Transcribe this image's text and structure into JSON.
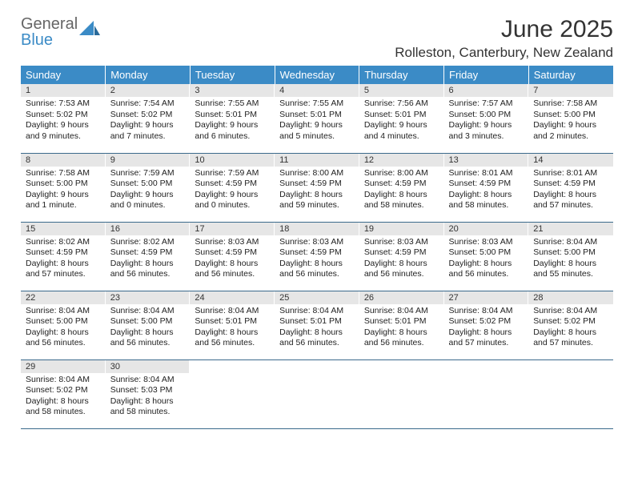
{
  "logo": {
    "word1": "General",
    "word2": "Blue"
  },
  "title": "June 2025",
  "location": "Rolleston, Canterbury, New Zealand",
  "colors": {
    "header_bg": "#3b8bc6",
    "header_fg": "#ffffff",
    "daynum_bg": "#e6e6e6",
    "row_border": "#3b6a8c",
    "text": "#222222",
    "logo_gray": "#666666",
    "logo_blue": "#3b8bc6"
  },
  "weekdays": [
    "Sunday",
    "Monday",
    "Tuesday",
    "Wednesday",
    "Thursday",
    "Friday",
    "Saturday"
  ],
  "weeks": [
    [
      {
        "n": "1",
        "sr": "Sunrise: 7:53 AM",
        "ss": "Sunset: 5:02 PM",
        "d1": "Daylight: 9 hours",
        "d2": "and 9 minutes."
      },
      {
        "n": "2",
        "sr": "Sunrise: 7:54 AM",
        "ss": "Sunset: 5:02 PM",
        "d1": "Daylight: 9 hours",
        "d2": "and 7 minutes."
      },
      {
        "n": "3",
        "sr": "Sunrise: 7:55 AM",
        "ss": "Sunset: 5:01 PM",
        "d1": "Daylight: 9 hours",
        "d2": "and 6 minutes."
      },
      {
        "n": "4",
        "sr": "Sunrise: 7:55 AM",
        "ss": "Sunset: 5:01 PM",
        "d1": "Daylight: 9 hours",
        "d2": "and 5 minutes."
      },
      {
        "n": "5",
        "sr": "Sunrise: 7:56 AM",
        "ss": "Sunset: 5:01 PM",
        "d1": "Daylight: 9 hours",
        "d2": "and 4 minutes."
      },
      {
        "n": "6",
        "sr": "Sunrise: 7:57 AM",
        "ss": "Sunset: 5:00 PM",
        "d1": "Daylight: 9 hours",
        "d2": "and 3 minutes."
      },
      {
        "n": "7",
        "sr": "Sunrise: 7:58 AM",
        "ss": "Sunset: 5:00 PM",
        "d1": "Daylight: 9 hours",
        "d2": "and 2 minutes."
      }
    ],
    [
      {
        "n": "8",
        "sr": "Sunrise: 7:58 AM",
        "ss": "Sunset: 5:00 PM",
        "d1": "Daylight: 9 hours",
        "d2": "and 1 minute."
      },
      {
        "n": "9",
        "sr": "Sunrise: 7:59 AM",
        "ss": "Sunset: 5:00 PM",
        "d1": "Daylight: 9 hours",
        "d2": "and 0 minutes."
      },
      {
        "n": "10",
        "sr": "Sunrise: 7:59 AM",
        "ss": "Sunset: 4:59 PM",
        "d1": "Daylight: 9 hours",
        "d2": "and 0 minutes."
      },
      {
        "n": "11",
        "sr": "Sunrise: 8:00 AM",
        "ss": "Sunset: 4:59 PM",
        "d1": "Daylight: 8 hours",
        "d2": "and 59 minutes."
      },
      {
        "n": "12",
        "sr": "Sunrise: 8:00 AM",
        "ss": "Sunset: 4:59 PM",
        "d1": "Daylight: 8 hours",
        "d2": "and 58 minutes."
      },
      {
        "n": "13",
        "sr": "Sunrise: 8:01 AM",
        "ss": "Sunset: 4:59 PM",
        "d1": "Daylight: 8 hours",
        "d2": "and 58 minutes."
      },
      {
        "n": "14",
        "sr": "Sunrise: 8:01 AM",
        "ss": "Sunset: 4:59 PM",
        "d1": "Daylight: 8 hours",
        "d2": "and 57 minutes."
      }
    ],
    [
      {
        "n": "15",
        "sr": "Sunrise: 8:02 AM",
        "ss": "Sunset: 4:59 PM",
        "d1": "Daylight: 8 hours",
        "d2": "and 57 minutes."
      },
      {
        "n": "16",
        "sr": "Sunrise: 8:02 AM",
        "ss": "Sunset: 4:59 PM",
        "d1": "Daylight: 8 hours",
        "d2": "and 56 minutes."
      },
      {
        "n": "17",
        "sr": "Sunrise: 8:03 AM",
        "ss": "Sunset: 4:59 PM",
        "d1": "Daylight: 8 hours",
        "d2": "and 56 minutes."
      },
      {
        "n": "18",
        "sr": "Sunrise: 8:03 AM",
        "ss": "Sunset: 4:59 PM",
        "d1": "Daylight: 8 hours",
        "d2": "and 56 minutes."
      },
      {
        "n": "19",
        "sr": "Sunrise: 8:03 AM",
        "ss": "Sunset: 4:59 PM",
        "d1": "Daylight: 8 hours",
        "d2": "and 56 minutes."
      },
      {
        "n": "20",
        "sr": "Sunrise: 8:03 AM",
        "ss": "Sunset: 5:00 PM",
        "d1": "Daylight: 8 hours",
        "d2": "and 56 minutes."
      },
      {
        "n": "21",
        "sr": "Sunrise: 8:04 AM",
        "ss": "Sunset: 5:00 PM",
        "d1": "Daylight: 8 hours",
        "d2": "and 55 minutes."
      }
    ],
    [
      {
        "n": "22",
        "sr": "Sunrise: 8:04 AM",
        "ss": "Sunset: 5:00 PM",
        "d1": "Daylight: 8 hours",
        "d2": "and 56 minutes."
      },
      {
        "n": "23",
        "sr": "Sunrise: 8:04 AM",
        "ss": "Sunset: 5:00 PM",
        "d1": "Daylight: 8 hours",
        "d2": "and 56 minutes."
      },
      {
        "n": "24",
        "sr": "Sunrise: 8:04 AM",
        "ss": "Sunset: 5:01 PM",
        "d1": "Daylight: 8 hours",
        "d2": "and 56 minutes."
      },
      {
        "n": "25",
        "sr": "Sunrise: 8:04 AM",
        "ss": "Sunset: 5:01 PM",
        "d1": "Daylight: 8 hours",
        "d2": "and 56 minutes."
      },
      {
        "n": "26",
        "sr": "Sunrise: 8:04 AM",
        "ss": "Sunset: 5:01 PM",
        "d1": "Daylight: 8 hours",
        "d2": "and 56 minutes."
      },
      {
        "n": "27",
        "sr": "Sunrise: 8:04 AM",
        "ss": "Sunset: 5:02 PM",
        "d1": "Daylight: 8 hours",
        "d2": "and 57 minutes."
      },
      {
        "n": "28",
        "sr": "Sunrise: 8:04 AM",
        "ss": "Sunset: 5:02 PM",
        "d1": "Daylight: 8 hours",
        "d2": "and 57 minutes."
      }
    ],
    [
      {
        "n": "29",
        "sr": "Sunrise: 8:04 AM",
        "ss": "Sunset: 5:02 PM",
        "d1": "Daylight: 8 hours",
        "d2": "and 58 minutes."
      },
      {
        "n": "30",
        "sr": "Sunrise: 8:04 AM",
        "ss": "Sunset: 5:03 PM",
        "d1": "Daylight: 8 hours",
        "d2": "and 58 minutes."
      },
      null,
      null,
      null,
      null,
      null
    ]
  ]
}
